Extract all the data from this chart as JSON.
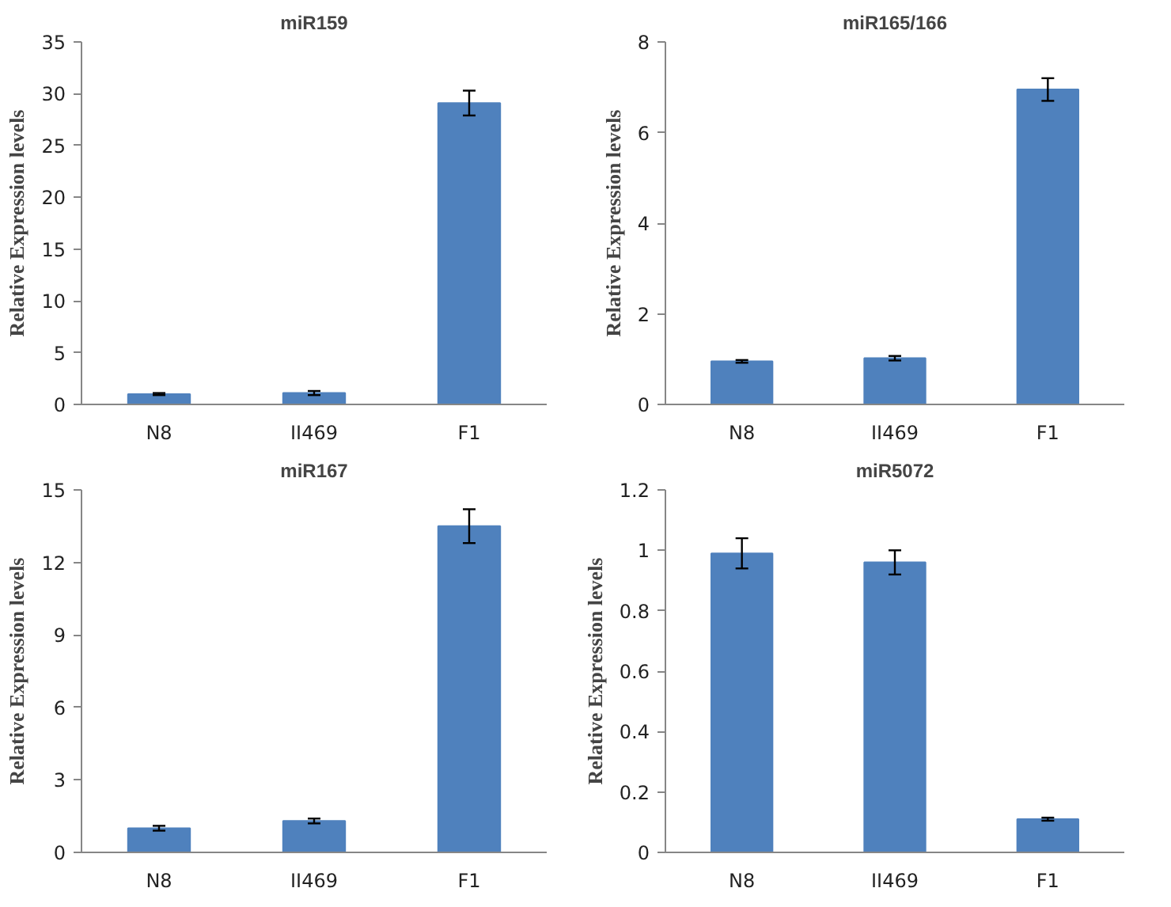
{
  "chart_data": [
    {
      "type": "bar",
      "title": "miR159",
      "ylabel": "Relative Expression levels",
      "categories": [
        "N8",
        "II469",
        "F1"
      ],
      "values": [
        1.0,
        1.1,
        29.1
      ],
      "errors": [
        0.1,
        0.2,
        1.2
      ],
      "color": "#4f81bd",
      "ylim": [
        0,
        35
      ],
      "yticks": [
        0,
        5,
        10,
        15,
        20,
        25,
        30,
        35
      ],
      "grid": false
    },
    {
      "type": "bar",
      "title": "miR165/166",
      "ylabel": "Relative Expression levels",
      "categories": [
        "N8",
        "II469",
        "F1"
      ],
      "values": [
        0.95,
        1.02,
        6.95
      ],
      "errors": [
        0.03,
        0.05,
        0.25
      ],
      "color": "#4f81bd",
      "ylim": [
        0,
        8
      ],
      "yticks": [
        0,
        2,
        4,
        6,
        8
      ],
      "grid": false
    },
    {
      "type": "bar",
      "title": "miR167",
      "ylabel": "Relative Expression levels",
      "categories": [
        "N8",
        "II469",
        "F1"
      ],
      "values": [
        1.0,
        1.3,
        13.5
      ],
      "errors": [
        0.1,
        0.1,
        0.7
      ],
      "color": "#4f81bd",
      "ylim": [
        0,
        15
      ],
      "yticks": [
        0,
        3,
        6,
        9,
        12,
        15
      ],
      "grid": false
    },
    {
      "type": "bar",
      "title": "miR5072",
      "ylabel": "Relative Expression levels",
      "categories": [
        "N8",
        "II469",
        "F1"
      ],
      "values": [
        0.99,
        0.96,
        0.11
      ],
      "errors": [
        0.05,
        0.04,
        0.005
      ],
      "color": "#4f81bd",
      "ylim": [
        0,
        1.2
      ],
      "yticks": [
        0,
        0.2,
        0.4,
        0.6,
        0.8,
        1,
        1.2
      ],
      "grid": false
    }
  ]
}
